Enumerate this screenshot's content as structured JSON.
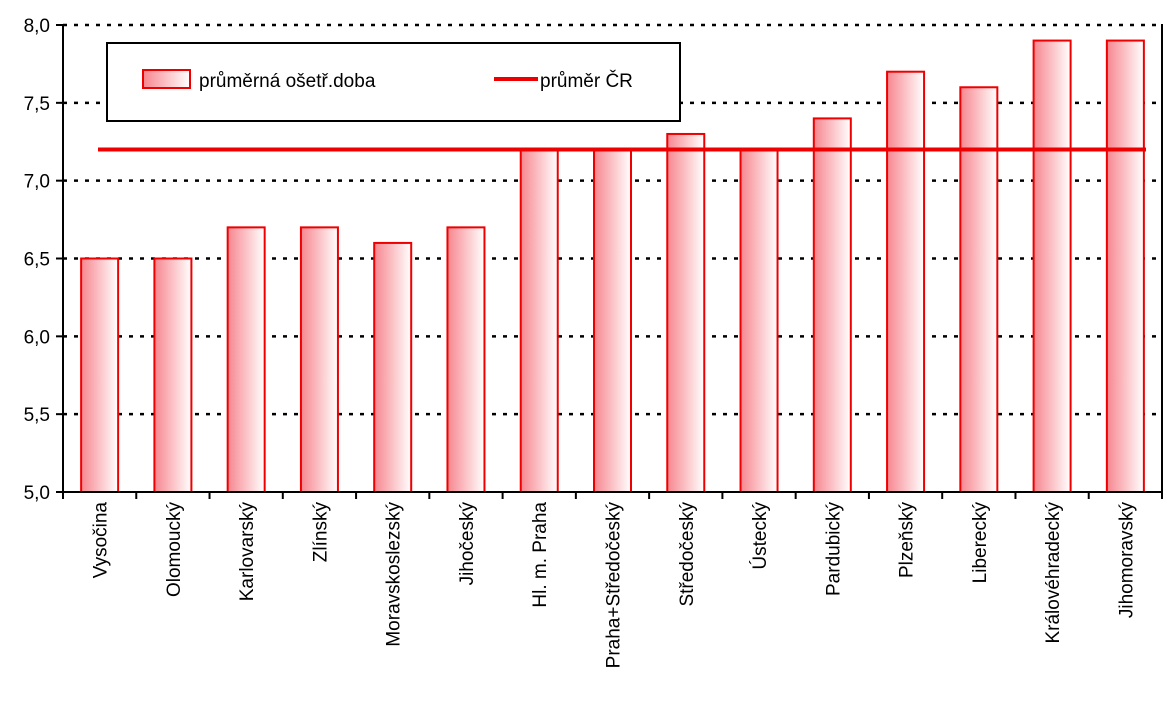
{
  "chart_data": {
    "type": "bar",
    "categories": [
      "Vysočina",
      "Olomoucký",
      "Karlovarský",
      "Zlínský",
      "Moravskoslezský",
      "Jihočeský",
      "Hl. m. Praha",
      "Praha+Středočeský",
      "Středočeský",
      "Ústecký",
      "Pardubický",
      "Plzeňský",
      "Liberecký",
      "Královéhradecký",
      "Jihomoravský"
    ],
    "series": [
      {
        "name": "průměrná ošetř.doba",
        "values": [
          6.5,
          6.5,
          6.7,
          6.7,
          6.6,
          6.7,
          7.2,
          7.2,
          7.3,
          7.2,
          7.4,
          7.7,
          7.6,
          7.9,
          7.9
        ]
      }
    ],
    "reference_line": {
      "name": "průměr ČR",
      "value": 7.2
    },
    "ylim": [
      5.0,
      8.0
    ],
    "yticks": [
      "5,0",
      "5,5",
      "6,0",
      "6,5",
      "7,0",
      "7,5",
      "8,0"
    ],
    "grid": "horizontal dotted",
    "legend_position": "top-left",
    "colors": {
      "bar_fill_start": "#f7868f",
      "bar_fill_end": "#ffffff",
      "bar_border": "#ee0000",
      "line": "#ee0000"
    }
  }
}
